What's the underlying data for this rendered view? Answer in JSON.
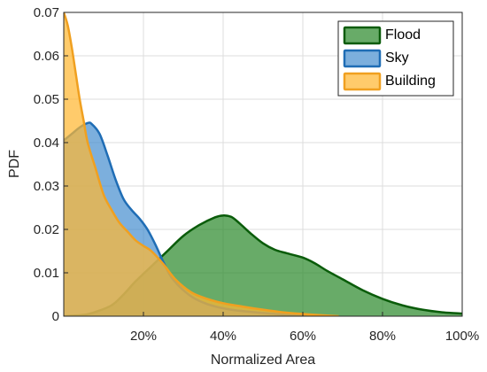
{
  "chart_data": {
    "type": "area",
    "title": "",
    "xlabel": "Normalized Area",
    "ylabel": "PDF",
    "xlim": [
      0,
      1
    ],
    "ylim": [
      0,
      0.07
    ],
    "x_ticks": [
      0.2,
      0.4,
      0.6,
      0.8,
      1.0
    ],
    "x_tick_labels": [
      "20%",
      "40%",
      "60%",
      "80%",
      "100%"
    ],
    "y_ticks": [
      0,
      0.01,
      0.02,
      0.03,
      0.04,
      0.05,
      0.06,
      0.07
    ],
    "y_tick_labels": [
      "0",
      "0.01",
      "0.02",
      "0.03",
      "0.04",
      "0.05",
      "0.06",
      "0.07"
    ],
    "grid": true,
    "legend_position": "top-right",
    "series": [
      {
        "name": "Flood",
        "fill": "#2e8b2e",
        "stroke": "#0a5c0a",
        "x": [
          0,
          0.05,
          0.08,
          0.12,
          0.15,
          0.18,
          0.22,
          0.26,
          0.3,
          0.34,
          0.38,
          0.4,
          0.42,
          0.44,
          0.47,
          0.5,
          0.53,
          0.56,
          0.6,
          0.63,
          0.66,
          0.7,
          0.75,
          0.8,
          0.85,
          0.9,
          0.95,
          1.0
        ],
        "y": [
          0,
          0.0003,
          0.001,
          0.0025,
          0.005,
          0.008,
          0.0115,
          0.015,
          0.0185,
          0.021,
          0.0228,
          0.0232,
          0.0229,
          0.0215,
          0.019,
          0.0168,
          0.0153,
          0.0145,
          0.0135,
          0.0122,
          0.0105,
          0.0085,
          0.006,
          0.004,
          0.0025,
          0.0015,
          0.0009,
          0.0006
        ]
      },
      {
        "name": "Sky",
        "fill": "#4a90d0",
        "stroke": "#1f6db5",
        "x": [
          0,
          0.02,
          0.04,
          0.06,
          0.07,
          0.09,
          0.11,
          0.13,
          0.15,
          0.17,
          0.19,
          0.21,
          0.23,
          0.25,
          0.27,
          0.3,
          0.33,
          0.37,
          0.42,
          0.47,
          0.52,
          0.57,
          0.61
        ],
        "y": [
          0.0405,
          0.042,
          0.0435,
          0.0445,
          0.0443,
          0.042,
          0.037,
          0.0315,
          0.027,
          0.0245,
          0.0225,
          0.02,
          0.0165,
          0.0125,
          0.009,
          0.006,
          0.004,
          0.0025,
          0.0015,
          0.001,
          0.0006,
          0.0002,
          0.0
        ]
      },
      {
        "name": "Building",
        "fill": "#ffb732",
        "stroke": "#f0a020",
        "x": [
          0,
          0.01,
          0.02,
          0.03,
          0.04,
          0.05,
          0.06,
          0.08,
          0.1,
          0.12,
          0.14,
          0.16,
          0.18,
          0.2,
          0.22,
          0.25,
          0.28,
          0.32,
          0.36,
          0.4,
          0.45,
          0.5,
          0.55,
          0.6,
          0.65,
          0.69
        ],
        "y": [
          0.07,
          0.067,
          0.062,
          0.056,
          0.05,
          0.045,
          0.04,
          0.034,
          0.028,
          0.0245,
          0.0215,
          0.0195,
          0.0175,
          0.0162,
          0.015,
          0.012,
          0.0085,
          0.0055,
          0.004,
          0.003,
          0.0022,
          0.0015,
          0.0009,
          0.0005,
          0.0002,
          0.0
        ]
      }
    ]
  }
}
